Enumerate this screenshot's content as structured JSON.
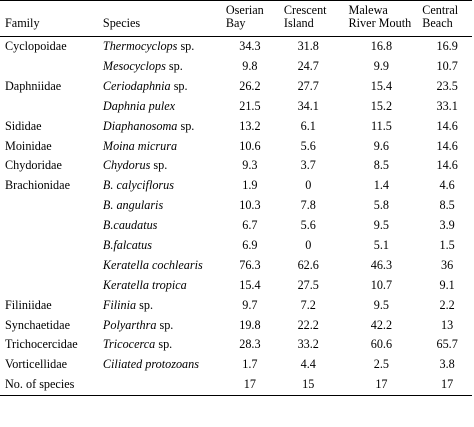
{
  "headers": {
    "family": "Family",
    "species": "Species",
    "oserian": [
      "Oserian",
      "Bay"
    ],
    "crescent": [
      "Crescent",
      "Island"
    ],
    "malewa": [
      "Malewa",
      "River Mouth"
    ],
    "central": [
      "Central",
      "Beach"
    ]
  },
  "rows": [
    {
      "family": "Cyclopoidae",
      "species_italic": "Thermocyclops",
      "species_suffix": " sp.",
      "values": [
        "34.3",
        "31.8",
        "16.8",
        "16.9"
      ]
    },
    {
      "family": "",
      "species_italic": "Mesocyclops",
      "species_suffix": " sp.",
      "values": [
        "9.8",
        "24.7",
        "9.9",
        "10.7"
      ]
    },
    {
      "family": "Daphniidae",
      "species_italic": "Ceriodaphnia",
      "species_suffix": " sp.",
      "values": [
        "26.2",
        "27.7",
        "15.4",
        "23.5"
      ]
    },
    {
      "family": "",
      "species_italic": "Daphnia pulex",
      "species_suffix": "",
      "values": [
        "21.5",
        "34.1",
        "15.2",
        "33.1"
      ]
    },
    {
      "family": "Sididae",
      "species_italic": "Diaphanosoma",
      "species_suffix": " sp.",
      "values": [
        "13.2",
        "6.1",
        "11.5",
        "14.6"
      ]
    },
    {
      "family": "Moinidae",
      "species_italic": "Moina micrura",
      "species_suffix": "",
      "values": [
        "10.6",
        "5.6",
        "9.6",
        "14.6"
      ]
    },
    {
      "family": "Chydoridae",
      "species_italic": "Chydorus",
      "species_suffix": " sp.",
      "values": [
        "9.3",
        "3.7",
        "8.5",
        "14.6"
      ]
    },
    {
      "family": "Brachionidae",
      "species_italic": "B. calyciflorus",
      "species_suffix": "",
      "values": [
        "1.9",
        "0",
        "1.4",
        "4.6"
      ]
    },
    {
      "family": "",
      "species_italic": "B. angularis",
      "species_suffix": "",
      "values": [
        "10.3",
        "7.8",
        "5.8",
        "8.5"
      ]
    },
    {
      "family": "",
      "species_italic": "B.caudatus",
      "species_suffix": "",
      "values": [
        "6.7",
        "5.6",
        "9.5",
        "3.9"
      ]
    },
    {
      "family": "",
      "species_italic": "B.falcatus",
      "species_suffix": "",
      "values": [
        "6.9",
        "0",
        "5.1",
        "1.5"
      ]
    },
    {
      "family": "",
      "species_italic": "Keratella cochlearis",
      "species_suffix": "",
      "values": [
        "76.3",
        "62.6",
        "46.3",
        "36"
      ]
    },
    {
      "family": "",
      "species_italic": "Keratella tropica",
      "species_suffix": "",
      "values": [
        "15.4",
        "27.5",
        "10.7",
        "9.1"
      ]
    },
    {
      "family": "Filiniidae",
      "species_italic": "Filinia",
      "species_suffix": " sp.",
      "values": [
        "9.7",
        "7.2",
        "9.5",
        "2.2"
      ]
    },
    {
      "family": "Synchaetidae",
      "species_italic": "Polyarthra",
      "species_suffix": " sp.",
      "values": [
        "19.8",
        "22.2",
        "42.2",
        "13"
      ]
    },
    {
      "family": "Trichocercidae",
      "species_italic": "Tricocerca",
      "species_suffix": " sp.",
      "values": [
        "28.3",
        "33.2",
        "60.6",
        "65.7"
      ]
    },
    {
      "family": "Vorticellidae",
      "species_italic": "Ciliated protozoans",
      "species_suffix": "",
      "values": [
        "1.7",
        "4.4",
        "2.5",
        "3.8"
      ]
    },
    {
      "family": "No. of species",
      "species_italic": "",
      "species_suffix": "",
      "values": [
        "17",
        "15",
        "17",
        "17"
      ]
    }
  ]
}
